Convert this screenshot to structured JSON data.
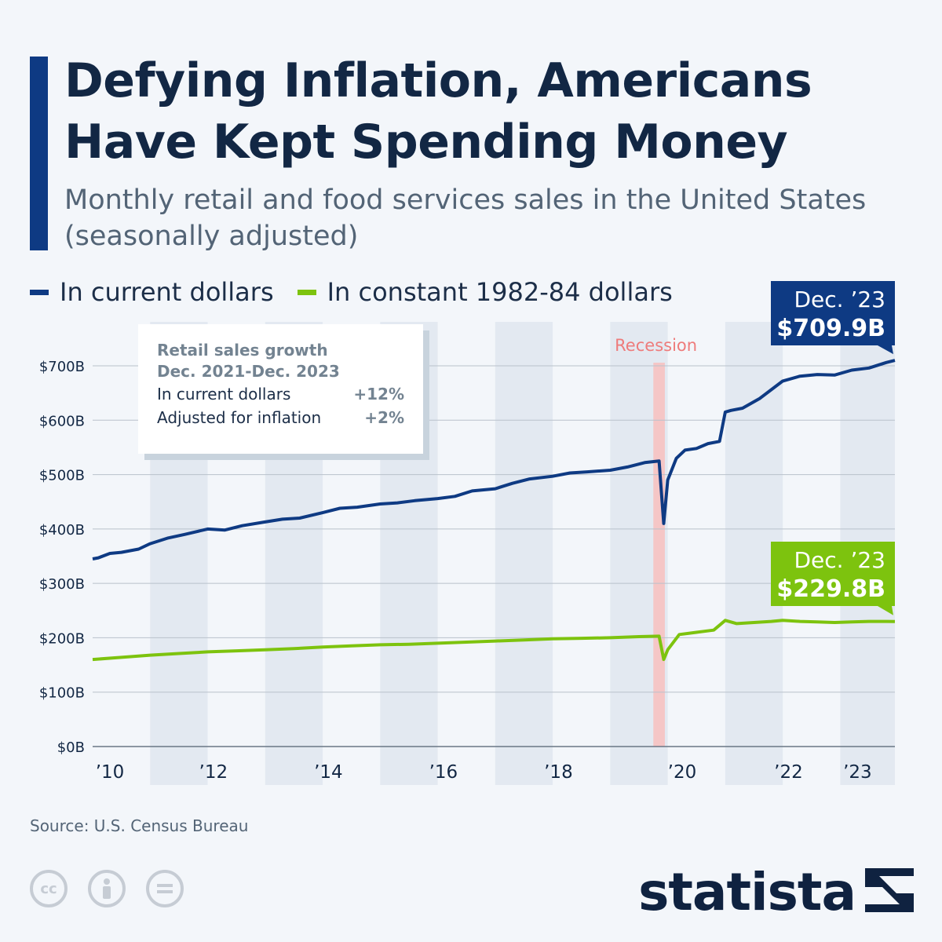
{
  "header": {
    "title_line1": "Defying Inflation, Americans",
    "title_line2": "Have Kept Spending Money",
    "subtitle_line1": "Monthly retail and food services sales in the United States",
    "subtitle_line2": "(seasonally adjusted)"
  },
  "legend": {
    "series1": "In current dollars",
    "series2": "In constant 1982-84 dollars"
  },
  "infobox": {
    "title_line1": "Retail sales growth",
    "title_line2": "Dec. 2021-Dec. 2023",
    "row1_label": "In current dollars",
    "row1_value": "+12%",
    "row2_label": "Adjusted for inflation",
    "row2_value": "+2%"
  },
  "callouts": {
    "current_month": "Dec. ’23",
    "current_value": "$709.9B",
    "constant_month": "Dec. ’23",
    "constant_value": "$229.8B"
  },
  "recession_label": "Recession",
  "source": "Source: U.S. Census Bureau",
  "brand": "statista",
  "icons": [
    "cc-icon",
    "attribution-icon",
    "no-derivatives-icon"
  ],
  "colors": {
    "current": "#0e3a83",
    "constant": "#7dc30e",
    "recession": "#f5c6c6",
    "band": "#e3e9f1",
    "accent": "#0e3a83"
  },
  "chart_data": {
    "type": "line",
    "title": "Monthly retail and food services sales in the United States (seasonally adjusted)",
    "ylim": [
      0,
      700
    ],
    "yticks": [
      0,
      100,
      200,
      300,
      400,
      500,
      600,
      700
    ],
    "ytick_labels": [
      "$0B",
      "$100B",
      "$200B",
      "$300B",
      "$400B",
      "$500B",
      "$600B",
      "$700B"
    ],
    "xlim": [
      2010.0,
      2023.95
    ],
    "xtick_labels": [
      {
        "x": 2010.3,
        "label": "’10"
      },
      {
        "x": 2012.1,
        "label": "’12"
      },
      {
        "x": 2014.1,
        "label": "’14"
      },
      {
        "x": 2016.1,
        "label": "’16"
      },
      {
        "x": 2018.1,
        "label": "’18"
      },
      {
        "x": 2020.25,
        "label": "’20"
      },
      {
        "x": 2022.1,
        "label": "’22"
      },
      {
        "x": 2023.3,
        "label": "’23"
      }
    ],
    "recession": [
      2019.75,
      2019.95
    ],
    "bands": [
      [
        2011.0,
        2012.0
      ],
      [
        2013.0,
        2014.0
      ],
      [
        2015.0,
        2016.0
      ],
      [
        2017.0,
        2018.0
      ],
      [
        2019.0,
        2020.0
      ],
      [
        2021.0,
        2022.0
      ],
      [
        2023.0,
        2023.95
      ]
    ],
    "series": [
      {
        "name": "In current dollars",
        "x": [
          2010.0,
          2010.1,
          2010.3,
          2010.5,
          2010.8,
          2011.0,
          2011.3,
          2011.6,
          2012.0,
          2012.3,
          2012.6,
          2013.0,
          2013.3,
          2013.6,
          2014.0,
          2014.3,
          2014.6,
          2015.0,
          2015.3,
          2015.6,
          2016.0,
          2016.3,
          2016.6,
          2017.0,
          2017.3,
          2017.6,
          2018.0,
          2018.3,
          2018.6,
          2019.0,
          2019.3,
          2019.6,
          2019.85,
          2019.93,
          2020.0,
          2020.15,
          2020.3,
          2020.5,
          2020.7,
          2020.9,
          2021.0,
          2021.1,
          2021.3,
          2021.6,
          2022.0,
          2022.3,
          2022.6,
          2022.9,
          2023.2,
          2023.5,
          2023.8,
          2023.95
        ],
        "values": [
          345,
          347,
          355,
          357,
          363,
          373,
          383,
          390,
          400,
          398,
          406,
          413,
          418,
          420,
          430,
          438,
          440,
          446,
          448,
          452,
          456,
          460,
          470,
          474,
          484,
          492,
          497,
          503,
          505,
          508,
          514,
          522,
          525,
          410,
          490,
          530,
          545,
          548,
          557,
          561,
          615,
          618,
          622,
          640,
          672,
          681,
          684,
          683,
          692,
          696,
          706,
          709.9
        ],
        "label": "$709.9B"
      },
      {
        "name": "In constant 1982-84 dollars",
        "x": [
          2010.0,
          2010.5,
          2011.0,
          2011.5,
          2012.0,
          2012.5,
          2013.0,
          2013.5,
          2014.0,
          2014.5,
          2015.0,
          2015.5,
          2016.0,
          2016.5,
          2017.0,
          2017.5,
          2018.0,
          2018.5,
          2019.0,
          2019.5,
          2019.85,
          2019.93,
          2020.0,
          2020.2,
          2020.5,
          2020.8,
          2021.0,
          2021.2,
          2021.5,
          2021.8,
          2022.0,
          2022.3,
          2022.6,
          2022.9,
          2023.2,
          2023.5,
          2023.8,
          2023.95
        ],
        "values": [
          160,
          164,
          168,
          171,
          174,
          176,
          178,
          180,
          183,
          185,
          187,
          188,
          190,
          192,
          194,
          196,
          198,
          199,
          200,
          202,
          203,
          160,
          178,
          206,
          210,
          214,
          232,
          226,
          228,
          230,
          232,
          230,
          229,
          228,
          229,
          230,
          230,
          229.8
        ],
        "label": "$229.8B"
      }
    ]
  }
}
